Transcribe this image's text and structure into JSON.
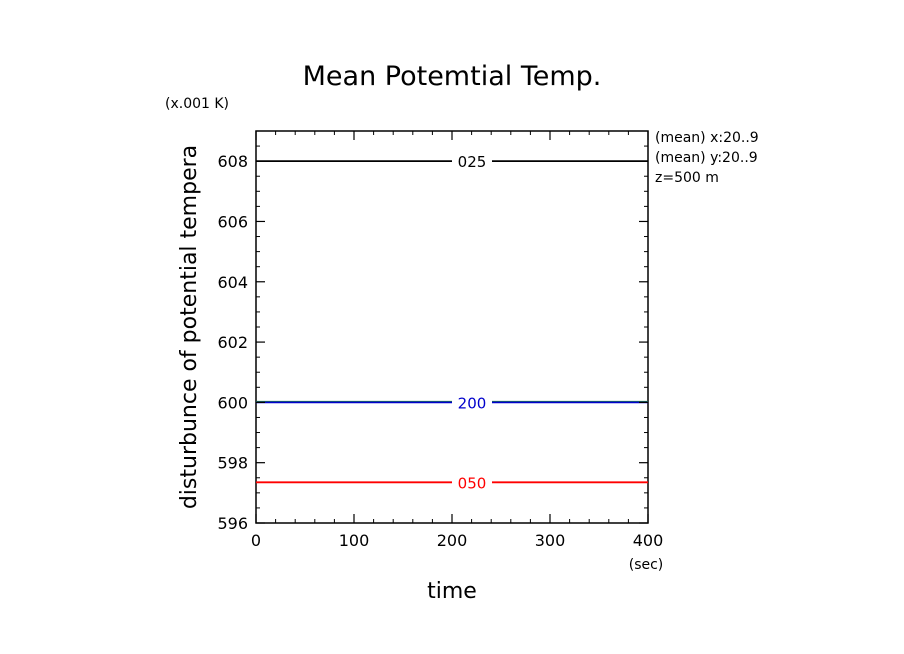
{
  "chart_data": {
    "type": "line",
    "title": "Mean Potemtial Temp.",
    "xlabel": "time",
    "ylabel": "disturbunce of potential tempera",
    "x_unit": "(sec)",
    "y_unit": "(x.001 K)",
    "xlim": [
      0,
      400
    ],
    "ylim": [
      596,
      609
    ],
    "x_ticks": [
      "0",
      "100",
      "200",
      "300",
      "400"
    ],
    "y_ticks": [
      "596",
      "598",
      "600",
      "602",
      "604",
      "606",
      "608"
    ],
    "grid": false,
    "annotations": [
      "(mean) x:20..9",
      "(mean) y:20..9",
      "z=500 m"
    ],
    "series": [
      {
        "label": "025",
        "color": "#000000",
        "x": [
          0,
          400
        ],
        "y": [
          608.0,
          608.0
        ]
      },
      {
        "label": "",
        "color": "#2a9d2a",
        "x": [
          0,
          400
        ],
        "y": [
          600.02,
          600.02
        ]
      },
      {
        "label": "200",
        "color": "#0000cc",
        "x": [
          0,
          400
        ],
        "y": [
          600.0,
          600.0
        ]
      },
      {
        "label": "050",
        "color": "#ff0000",
        "x": [
          0,
          400
        ],
        "y": [
          597.35,
          597.35
        ]
      }
    ]
  }
}
